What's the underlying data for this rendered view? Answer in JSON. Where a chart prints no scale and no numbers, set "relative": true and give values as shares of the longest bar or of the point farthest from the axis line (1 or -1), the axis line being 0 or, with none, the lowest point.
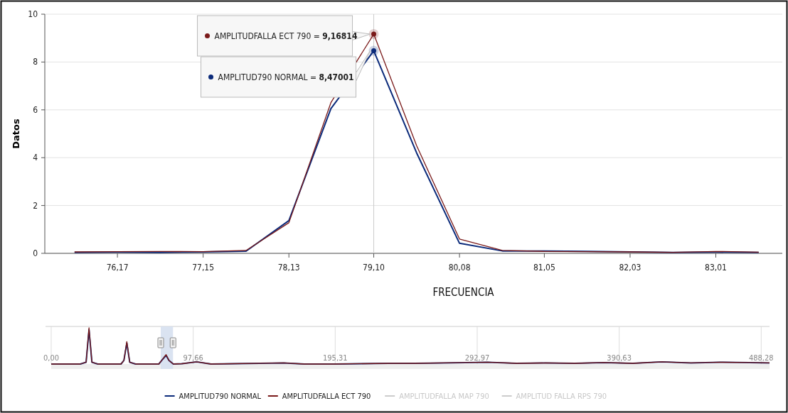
{
  "chart_data": [
    {
      "type": "line",
      "xlabel": "FRECUENCIA",
      "ylabel": "Datos",
      "xlim": [
        75.34,
        83.77
      ],
      "ylim": [
        0,
        10
      ],
      "xticks": [
        {
          "value": 76.17,
          "label": "76,17"
        },
        {
          "value": 77.15,
          "label": "77,15"
        },
        {
          "value": 78.13,
          "label": "78,13"
        },
        {
          "value": 79.1,
          "label": "79,10"
        },
        {
          "value": 80.08,
          "label": "80,08"
        },
        {
          "value": 81.05,
          "label": "81,05"
        },
        {
          "value": 82.03,
          "label": "82,03"
        },
        {
          "value": 83.01,
          "label": "83,01"
        }
      ],
      "yticks": [
        0,
        2,
        4,
        6,
        8,
        10
      ],
      "grid": "y",
      "legend": "bottom",
      "marker": "none",
      "line_style": "solid",
      "x": [
        75.68,
        76.17,
        76.66,
        77.15,
        77.64,
        78.13,
        78.61,
        79.1,
        79.59,
        80.08,
        80.57,
        81.05,
        81.54,
        82.03,
        82.52,
        83.01,
        83.5
      ],
      "series": [
        {
          "name": "AMPLITUD790 NORMAL",
          "color": "#0b2a7a",
          "values": [
            0.04,
            0.05,
            0.04,
            0.06,
            0.09,
            1.37,
            6.05,
            8.47001,
            4.2,
            0.42,
            0.1,
            0.1,
            0.08,
            0.06,
            0.04,
            0.05,
            0.04
          ]
        },
        {
          "name": "AMPLITUDFALLA ECT 790",
          "color": "#7a1a1a",
          "values": [
            0.06,
            0.07,
            0.08,
            0.07,
            0.12,
            1.28,
            6.3,
            9.16814,
            4.5,
            0.6,
            0.12,
            0.08,
            0.07,
            0.06,
            0.04,
            0.08,
            0.05
          ]
        },
        {
          "name": "AMPLITUDFALLA MAP 790",
          "color": "#cccccc",
          "values": [
            null,
            null,
            null,
            null,
            null,
            null,
            null,
            null,
            null,
            null,
            null,
            null,
            null,
            null,
            null,
            null,
            null
          ]
        },
        {
          "name": "AMPLITUD FALLA RPS 790",
          "color": "#cccccc",
          "values": [
            null,
            null,
            null,
            null,
            null,
            null,
            null,
            null,
            null,
            null,
            null,
            null,
            null,
            null,
            null,
            null,
            null
          ]
        }
      ],
      "ref_lines": [
        {
          "axis": "x",
          "value": 79.1,
          "color": "#cccccc"
        }
      ],
      "annotations": [
        {
          "text": "AMPLITUDFALLA ECT 790 = 9,16814",
          "x": 79.1,
          "y": 9.16814
        },
        {
          "text": "AMPLITUD790 NORMAL = 8,47001",
          "x": 79.1,
          "y": 8.47001
        }
      ]
    },
    {
      "type": "line",
      "relative": true,
      "grid": "x",
      "xlim": [
        0,
        494
      ],
      "xticks": [
        {
          "value": 0,
          "label": "0,00"
        },
        {
          "value": 97.66,
          "label": "97,66"
        },
        {
          "value": 195.31,
          "label": "195,31"
        },
        {
          "value": 292.97,
          "label": "292,97"
        },
        {
          "value": 390.63,
          "label": "390,63"
        },
        {
          "value": 488.28,
          "label": "488,28"
        }
      ],
      "x": [
        0,
        20,
        24,
        26,
        28,
        32,
        48,
        50,
        52,
        54,
        58,
        74,
        76,
        79,
        81,
        84,
        90,
        100,
        110,
        160,
        174,
        195,
        232,
        250,
        270,
        300,
        320,
        340,
        360,
        380,
        400,
        420,
        440,
        460,
        480,
        494
      ],
      "series": [
        {
          "color": "#0b2a7a",
          "values": [
            0,
            0,
            0.05,
            0.95,
            0.05,
            0,
            0,
            0.1,
            0.58,
            0.05,
            0,
            0,
            0.1,
            0.24,
            0.1,
            0,
            0.01,
            0.06,
            0,
            0.03,
            0,
            0,
            0.02,
            0.02,
            0.03,
            0.05,
            0.02,
            0.03,
            0.02,
            0.04,
            0.02,
            0.06,
            0.03,
            0.05,
            0.04,
            0.03
          ]
        },
        {
          "color": "#7a1a1a",
          "values": [
            0,
            0,
            0.05,
            1,
            0.05,
            0,
            0,
            0.1,
            0.62,
            0.05,
            0,
            0,
            0.1,
            0.26,
            0.1,
            0,
            0.01,
            0.06,
            0,
            0.03,
            0,
            0,
            0.02,
            0.02,
            0.03,
            0.05,
            0.02,
            0.03,
            0.02,
            0.04,
            0.02,
            0.06,
            0.03,
            0.05,
            0.04,
            0.03
          ]
        }
      ],
      "bands": [
        {
          "axis": "x",
          "from": 75.34,
          "to": 83.77,
          "color": "#d6e0f0"
        }
      ]
    }
  ]
}
